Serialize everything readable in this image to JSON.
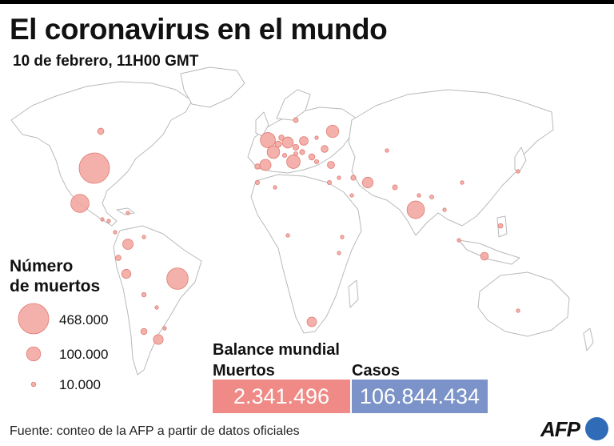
{
  "header": {
    "title": "El coronavirus en el mundo",
    "subtitle": "10 de febrero, 11H00 GMT"
  },
  "legend": {
    "title": "Número\nde muertos",
    "items": [
      {
        "label": "468.000",
        "value": 468000
      },
      {
        "label": "100.000",
        "value": 100000
      },
      {
        "label": "10.000",
        "value": 10000
      }
    ]
  },
  "summary": {
    "title": "Balance mundial",
    "deaths_label": "Muertos",
    "deaths_value": "2.341.496",
    "cases_label": "Casos",
    "cases_value": "106.844.434"
  },
  "footer": {
    "source": "Fuente: conteo de la AFP a partir de datos oficiales",
    "logo_text": "AFP"
  },
  "colors": {
    "bubble_fill": "#f2a39c",
    "bubble_stroke": "#e07a72",
    "land_stroke": "#b9b9b9",
    "deaths_box": "#ef8a86",
    "cases_box": "#7b93c9",
    "afp_blue": "#2f6bb7"
  },
  "map_data": {
    "type": "proportional-symbol-map",
    "metric": "deaths",
    "bubbles": [
      {
        "region": "United States",
        "deaths": 468000
      },
      {
        "region": "Brazil",
        "deaths": 232000
      },
      {
        "region": "Mexico",
        "deaths": 167000
      },
      {
        "region": "India",
        "deaths": 155000
      },
      {
        "region": "United Kingdom",
        "deaths": 115000
      },
      {
        "region": "Italy",
        "deaths": 92000
      },
      {
        "region": "France",
        "deaths": 80000
      },
      {
        "region": "Russia",
        "deaths": 78000
      },
      {
        "region": "Germany",
        "deaths": 62000
      },
      {
        "region": "Spain",
        "deaths": 64000
      },
      {
        "region": "Iran",
        "deaths": 58000
      },
      {
        "region": "Colombia",
        "deaths": 55000
      },
      {
        "region": "Argentina",
        "deaths": 49000
      },
      {
        "region": "South Africa",
        "deaths": 46000
      },
      {
        "region": "Peru",
        "deaths": 42000
      },
      {
        "region": "Poland",
        "deaths": 38000
      },
      {
        "region": "Indonesia",
        "deaths": 31000
      },
      {
        "region": "Turkey",
        "deaths": 26000
      },
      {
        "region": "Ukraine",
        "deaths": 24000
      },
      {
        "region": "Canada",
        "deaths": 20000
      },
      {
        "region": "Chile",
        "deaths": 19000
      },
      {
        "region": "Belgium",
        "deaths": 21000
      },
      {
        "region": "Czech Republic",
        "deaths": 17000
      },
      {
        "region": "Romania",
        "deaths": 19000
      },
      {
        "region": "Ecuador",
        "deaths": 15000
      },
      {
        "region": "Netherlands",
        "deaths": 14000
      },
      {
        "region": "Sweden",
        "deaths": 12000
      },
      {
        "region": "Pakistan",
        "deaths": 12000
      },
      {
        "region": "Hungary",
        "deaths": 13000
      },
      {
        "region": "Philippines",
        "deaths": 11000
      },
      {
        "region": "Egypt",
        "deaths": 9000
      },
      {
        "region": "Bolivia",
        "deaths": 10000
      },
      {
        "region": "Iraq",
        "deaths": 13000
      },
      {
        "region": "Portugal",
        "deaths": 14000
      },
      {
        "region": "Switzerland",
        "deaths": 9000
      },
      {
        "region": "Austria",
        "deaths": 8000
      },
      {
        "region": "Guatemala",
        "deaths": 6000
      },
      {
        "region": "Bangladesh",
        "deaths": 8000
      },
      {
        "region": "Japan",
        "deaths": 6500
      },
      {
        "region": "Morocco",
        "deaths": 8500
      },
      {
        "region": "Saudi Arabia",
        "deaths": 6400
      },
      {
        "region": "Bulgaria",
        "deaths": 9000
      },
      {
        "region": "Panama",
        "deaths": 5500
      },
      {
        "region": "Honduras",
        "deaths": 4000
      },
      {
        "region": "Dominican Republic",
        "deaths": 2800
      },
      {
        "region": "Kazakhstan",
        "deaths": 2900
      },
      {
        "region": "Algeria",
        "deaths": 2900
      },
      {
        "region": "China",
        "deaths": 4600
      },
      {
        "region": "Israel",
        "deaths": 5000
      },
      {
        "region": "Belarus",
        "deaths": 1900
      },
      {
        "region": "Paraguay",
        "deaths": 2900
      },
      {
        "region": "Venezuela",
        "deaths": 1200
      },
      {
        "region": "Malaysia",
        "deaths": 900
      },
      {
        "region": "Ethiopia",
        "deaths": 2000
      },
      {
        "region": "Kenya",
        "deaths": 1800
      },
      {
        "region": "Nigeria",
        "deaths": 1600
      },
      {
        "region": "Australia",
        "deaths": 900
      },
      {
        "region": "Myanmar",
        "deaths": 3100
      },
      {
        "region": "Nepal",
        "deaths": 2000
      },
      {
        "region": "Uruguay",
        "deaths": 500
      }
    ]
  }
}
